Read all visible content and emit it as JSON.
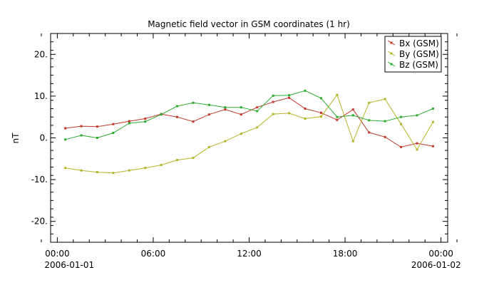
{
  "chart_data": {
    "type": "line",
    "title": "Magnetic field vector in GSM coordinates (1 hr)",
    "xlabel": "",
    "ylabel": "nT",
    "ylim": [
      -25,
      25
    ],
    "yticks": [
      -20,
      -10,
      0,
      10,
      20
    ],
    "ytick_labels": [
      "-20.",
      "-10.",
      "0.",
      "10.",
      "20."
    ],
    "xlim": [
      "2006-01-01 00:00",
      "2006-01-02 00:00"
    ],
    "xticks": [
      "2006-01-01 00:00",
      "2006-01-01 06:00",
      "2006-01-01 12:00",
      "2006-01-01 18:00",
      "2006-01-02 00:00"
    ],
    "xtick_labels": [
      "00:00",
      "06:00",
      "12:00",
      "18:00",
      "00:00"
    ],
    "xdate_labels": [
      "2006-01-01",
      "2006-01-02"
    ],
    "grid": false,
    "legend_position": "top-right",
    "x": [
      "00:30",
      "01:30",
      "02:30",
      "03:30",
      "04:30",
      "05:30",
      "06:30",
      "07:30",
      "08:30",
      "09:30",
      "10:30",
      "11:30",
      "12:30",
      "13:30",
      "14:30",
      "15:30",
      "16:30",
      "17:30",
      "18:30",
      "19:30",
      "20:30",
      "21:30",
      "22:30",
      "23:30"
    ],
    "series": [
      {
        "name": "Bx (GSM)",
        "color": "#c0392b",
        "values": [
          2.3,
          2.8,
          2.7,
          3.3,
          4.0,
          4.6,
          5.7,
          5.0,
          3.9,
          5.6,
          6.8,
          5.6,
          7.3,
          8.6,
          9.6,
          7.0,
          6.0,
          4.3,
          6.8,
          1.3,
          0.2,
          -2.2,
          -1.3,
          -2.0
        ]
      },
      {
        "name": "By (GSM)",
        "color": "#b5b52a",
        "values": [
          -7.2,
          -7.8,
          -8.2,
          -8.4,
          -7.8,
          -7.2,
          -6.5,
          -5.3,
          -4.8,
          -2.2,
          -0.8,
          1.0,
          2.5,
          5.7,
          5.9,
          4.6,
          5.1,
          10.3,
          -0.8,
          8.4,
          9.3,
          3.3,
          -2.8,
          3.8
        ]
      },
      {
        "name": "Bz (GSM)",
        "color": "#2eaa2e",
        "values": [
          -0.4,
          0.6,
          0.0,
          1.2,
          3.5,
          3.9,
          5.6,
          7.6,
          8.4,
          7.9,
          7.3,
          7.3,
          6.4,
          10.1,
          10.2,
          11.3,
          9.5,
          5.0,
          5.4,
          4.2,
          4.0,
          5.0,
          5.4,
          7.0
        ]
      }
    ]
  }
}
